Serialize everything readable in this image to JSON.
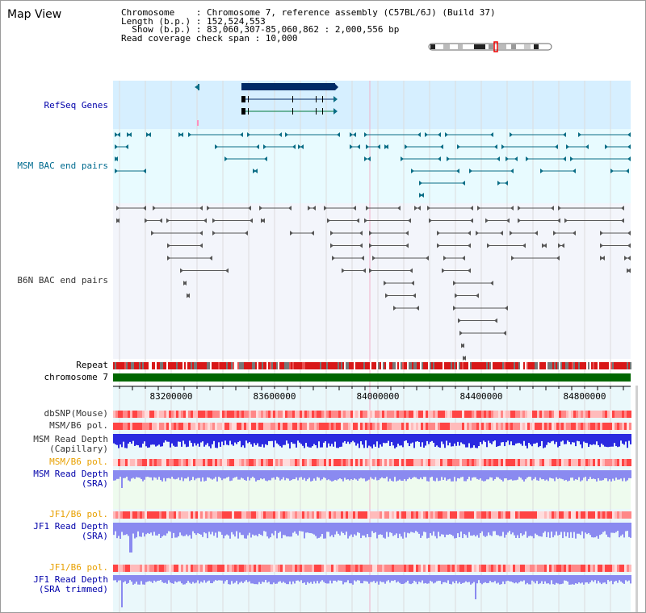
{
  "view": {
    "title": "Map View",
    "info_lines": [
      "Chromosome    : Chromosome 7, reference assembly (C57BL/6J) (Build 37)",
      "Length (b.p.) : 152,524,553",
      "  Show (b.p.) : 83,060,307-85,060,862 : 2,000,556 bp",
      "Read coverage check span : 10,000"
    ]
  },
  "labels": {
    "refseq": "RefSeq Genes",
    "msm_bac": "MSM BAC end pairs",
    "b6n_bac": "B6N BAC end pairs",
    "repeat": "Repeat",
    "chromosome": "chromosome 7",
    "dbsnp": "dbSNP(Mouse)",
    "msm_pol1": "MSM/B6 pol.",
    "msm_depth_cap_1": "MSM Read Depth",
    "msm_depth_cap_2": "(Capillary)",
    "msm_pol2": "MSM/B6 pol.",
    "msm_depth_sra_1": "MSM Read Depth",
    "msm_depth_sra_2": "(SRA)",
    "jf1_pol1": "JF1/B6 pol.",
    "jf1_depth_sra_1": "JF1 Read Depth",
    "jf1_depth_sra_2": "(SRA)",
    "jf1_pol2": "JF1/B6 pol.",
    "jf1_depth_trim_1": "JF1 Read Depth",
    "jf1_depth_trim_2": "(SRA trimmed)"
  },
  "axis": {
    "ticks": [
      "83200000",
      "83600000",
      "84000000",
      "84400000",
      "84800000"
    ]
  },
  "colors": {
    "refseq_bg": "#d6efff",
    "msm_bac_bg": "#e8fbff",
    "b6n_bac_bg": "#f3f5fb",
    "lower_bg": "#eef6ff",
    "msm_label": "#006b8f",
    "b6n_label": "#333333",
    "blue_label": "#0000aa",
    "orange_label": "#e8a000",
    "gene": "#002a66",
    "msm_bac": "#0a6d86",
    "b6n_bac": "#555555",
    "chromosome": "#006600",
    "depth": "#2a2ae0",
    "depth_light": "#8a8af0",
    "pol": "#ef6a6a"
  }
}
